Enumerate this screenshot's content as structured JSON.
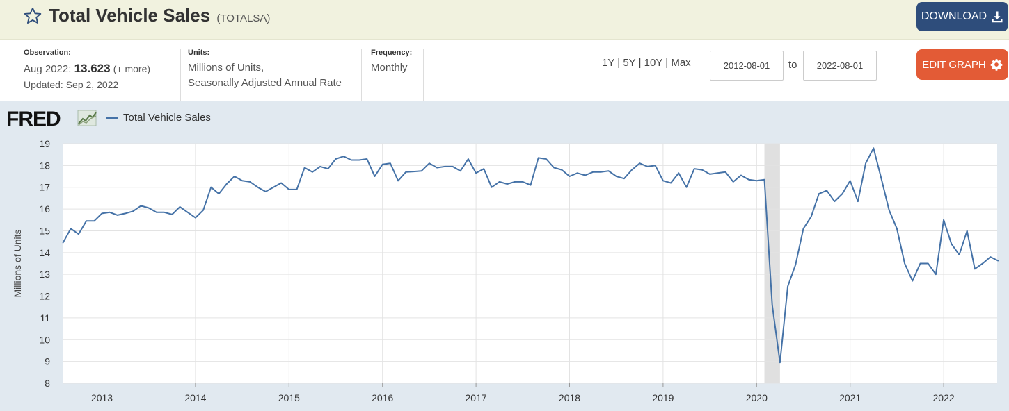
{
  "header": {
    "title": "Total Vehicle Sales",
    "series_id": "(TOTALSA)",
    "download_label": "DOWNLOAD"
  },
  "meta": {
    "observation_label": "Observation:",
    "observation_date": "Aug 2022:",
    "observation_value": "13.623",
    "observation_more": "(+ more)",
    "updated": "Updated: Sep 2, 2022",
    "units_label": "Units:",
    "units_line1": "Millions of Units,",
    "units_line2": "Seasonally Adjusted Annual Rate",
    "frequency_label": "Frequency:",
    "frequency": "Monthly"
  },
  "controls": {
    "range_1y": "1Y",
    "range_5y": "5Y",
    "range_10y": "10Y",
    "range_max": "Max",
    "separator": "|",
    "start_date": "2012-08-01",
    "to_label": "to",
    "end_date": "2022-08-01",
    "edit_label": "EDIT GRAPH"
  },
  "logo": {
    "text": "FRED"
  },
  "colors": {
    "accent": "#2e4d7b",
    "edit": "#e35b36",
    "series": "#4572a7",
    "panel": "#e1e9f0",
    "recession": "#e0e0e0"
  },
  "chart_data": {
    "type": "line",
    "ylabel": "Millions of Units",
    "ylim": [
      8,
      19
    ],
    "yticks": [
      8,
      9,
      10,
      11,
      12,
      13,
      14,
      15,
      16,
      17,
      18,
      19
    ],
    "xticks": [
      "2013",
      "2014",
      "2015",
      "2016",
      "2017",
      "2018",
      "2019",
      "2020",
      "2021",
      "2022"
    ],
    "grid": true,
    "legend_position": "top-left",
    "recession": {
      "start": "2020-02",
      "end": "2020-04"
    },
    "series": [
      {
        "name": "Total Vehicle Sales",
        "start": "2012-08",
        "frequency": "monthly",
        "values": [
          14.45,
          15.1,
          14.85,
          15.45,
          15.45,
          15.8,
          15.85,
          15.72,
          15.8,
          15.9,
          16.15,
          16.05,
          15.85,
          15.85,
          15.75,
          16.1,
          15.85,
          15.6,
          15.95,
          17.0,
          16.7,
          17.15,
          17.5,
          17.3,
          17.25,
          17.0,
          16.8,
          17.0,
          17.2,
          16.9,
          16.9,
          17.9,
          17.7,
          17.95,
          17.85,
          18.3,
          18.42,
          18.25,
          18.25,
          18.3,
          17.5,
          18.05,
          18.1,
          17.3,
          17.7,
          17.72,
          17.75,
          18.1,
          17.9,
          17.95,
          17.95,
          17.75,
          18.3,
          17.65,
          17.85,
          17.0,
          17.25,
          17.15,
          17.25,
          17.25,
          17.1,
          18.35,
          18.3,
          17.9,
          17.8,
          17.5,
          17.65,
          17.55,
          17.7,
          17.7,
          17.75,
          17.5,
          17.4,
          17.8,
          18.1,
          17.95,
          18.0,
          17.3,
          17.2,
          17.65,
          17.0,
          17.85,
          17.8,
          17.6,
          17.65,
          17.7,
          17.25,
          17.55,
          17.35,
          17.3,
          17.35,
          11.6,
          8.95,
          12.45,
          13.45,
          15.1,
          15.65,
          16.7,
          16.85,
          16.35,
          16.7,
          17.3,
          16.35,
          18.1,
          18.8,
          17.4,
          15.95,
          15.1,
          13.5,
          12.7,
          13.5,
          13.5,
          13.0,
          15.5,
          14.4,
          13.9,
          15.0,
          13.25,
          13.5,
          13.8,
          13.623
        ]
      }
    ]
  }
}
